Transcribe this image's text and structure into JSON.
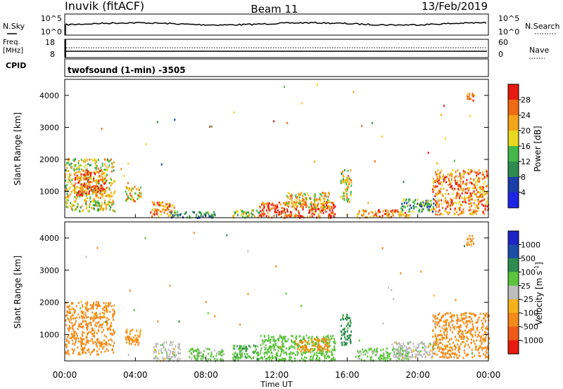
{
  "header": {
    "station": "Inuvik (fitACF)",
    "beam": "Beam 11",
    "date": "13/Feb/2019"
  },
  "noise_panel": {
    "left_label": "N.Sky",
    "left_ticks": [
      "10^5",
      "10^0"
    ],
    "right_label": "N.Search",
    "right_ticks": [
      "10^5",
      "10^0"
    ]
  },
  "freq_panel": {
    "left_label_1": "Freq.",
    "left_label_2": "[MHz]",
    "left_ticks": [
      "18",
      "8"
    ],
    "right_label": "Nave",
    "right_ticks": [
      "60",
      "0"
    ],
    "cpid_label": "CPID"
  },
  "cpid_text": "twofsound (1-min) -3505",
  "x_axis": {
    "ticks": [
      "00:00",
      "04:00",
      "08:00",
      "12:00",
      "16:00",
      "20:00",
      "00:00"
    ],
    "title": "Time UT"
  },
  "y_axis": {
    "title": "Slant Range [km]",
    "ticks": [
      "4000",
      "3000",
      "2000",
      "1000"
    ]
  },
  "colors": {
    "power": [
      "#1e24e6",
      "#1c3ea8",
      "#2e8c50",
      "#44b84a",
      "#e8d820",
      "#f3a41a",
      "#ef6a14",
      "#e81a10"
    ],
    "velocity": [
      "#e81a10",
      "#ef5a18",
      "#f38a1a",
      "#f3b21a",
      "#bdbdbd",
      "#5cc43c",
      "#2e8c50",
      "#1c4ea8",
      "#1e24c6"
    ]
  },
  "power_colorbar": {
    "title": "Power [dB]",
    "ticks": [
      "28",
      "24",
      "20",
      "16",
      "12",
      "8",
      "4"
    ]
  },
  "velocity_colorbar": {
    "title_prefix": "Velocity [m s",
    "title_exp": "-1",
    "title_suffix": "]",
    "ticks": [
      "1000",
      "500",
      "100",
      "25",
      "-25",
      "-100",
      "-500",
      "-1000"
    ]
  },
  "chart_data": [
    {
      "type": "heatmap",
      "panel": "power",
      "x_range_hours": [
        0,
        24
      ],
      "y_range_km": [
        180,
        4500
      ],
      "color_range_db": [
        0,
        32
      ],
      "patches": [
        {
          "t0": 0.0,
          "t1": 2.8,
          "r0": 400,
          "r1": 2050,
          "db": 18
        },
        {
          "t0": 0.5,
          "t1": 2.3,
          "r0": 900,
          "r1": 1700,
          "db": 26
        },
        {
          "t0": 3.4,
          "t1": 4.3,
          "r0": 700,
          "r1": 1200,
          "db": 20
        },
        {
          "t0": 4.8,
          "t1": 6.2,
          "r0": 250,
          "r1": 700,
          "db": 24
        },
        {
          "t0": 6.0,
          "t1": 8.5,
          "r0": 200,
          "r1": 400,
          "db": 10
        },
        {
          "t0": 9.5,
          "t1": 11.0,
          "r0": 200,
          "r1": 450,
          "db": 16
        },
        {
          "t0": 11.0,
          "t1": 15.3,
          "r0": 200,
          "r1": 700,
          "db": 28
        },
        {
          "t0": 12.5,
          "t1": 15.0,
          "r0": 500,
          "r1": 1000,
          "db": 20
        },
        {
          "t0": 15.6,
          "t1": 16.2,
          "r0": 700,
          "r1": 1700,
          "db": 18
        },
        {
          "t0": 16.5,
          "t1": 19.5,
          "r0": 200,
          "r1": 450,
          "db": 24
        },
        {
          "t0": 19.0,
          "t1": 21.0,
          "r0": 400,
          "r1": 800,
          "db": 12
        },
        {
          "t0": 20.8,
          "t1": 24.0,
          "r0": 300,
          "r1": 1700,
          "db": 24
        },
        {
          "t0": 22.7,
          "t1": 23.2,
          "r0": 3800,
          "r1": 4100,
          "db": 24
        }
      ]
    },
    {
      "type": "heatmap",
      "panel": "velocity",
      "x_range_hours": [
        0,
        24
      ],
      "y_range_km": [
        180,
        4500
      ],
      "color_range_ms": [
        -1000,
        1000
      ],
      "patches": [
        {
          "t0": 0.0,
          "t1": 2.8,
          "r0": 400,
          "r1": 2050,
          "v": -200
        },
        {
          "t0": 3.4,
          "t1": 4.3,
          "r0": 700,
          "r1": 1200,
          "v": -150
        },
        {
          "t0": 5.0,
          "t1": 6.5,
          "r0": 200,
          "r1": 800,
          "v": 0
        },
        {
          "t0": 7.0,
          "t1": 9.0,
          "r0": 200,
          "r1": 600,
          "v": 40
        },
        {
          "t0": 9.5,
          "t1": 11.0,
          "r0": 200,
          "r1": 700,
          "v": 80
        },
        {
          "t0": 11.0,
          "t1": 15.3,
          "r0": 200,
          "r1": 1000,
          "v": 60
        },
        {
          "t0": 13.0,
          "t1": 15.0,
          "r0": 500,
          "r1": 900,
          "v": -150
        },
        {
          "t0": 15.6,
          "t1": 16.2,
          "r0": 700,
          "r1": 1700,
          "v": 200
        },
        {
          "t0": 16.5,
          "t1": 19.5,
          "r0": 200,
          "r1": 600,
          "v": 40
        },
        {
          "t0": 18.5,
          "t1": 21.0,
          "r0": 300,
          "r1": 800,
          "v": 0
        },
        {
          "t0": 20.8,
          "t1": 24.0,
          "r0": 300,
          "r1": 1700,
          "v": -200
        },
        {
          "t0": 22.7,
          "t1": 23.2,
          "r0": 3800,
          "r1": 4100,
          "v": -150
        }
      ]
    }
  ]
}
